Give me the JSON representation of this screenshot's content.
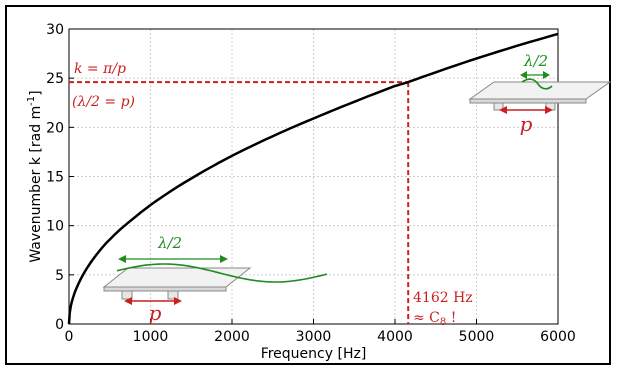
{
  "chart_data": {
    "type": "line",
    "xlabel": "Frequency [Hz]",
    "ylabel": "Wavenumber k [rad m",
    "ylabel_sup": "-1",
    "ylabel_close": "]",
    "xlim": [
      0,
      6000
    ],
    "ylim": [
      0,
      30
    ],
    "xticks": [
      "0",
      "1000",
      "2000",
      "3000",
      "4000",
      "5000",
      "6000"
    ],
    "yticks": [
      "0",
      "5",
      "10",
      "15",
      "20",
      "25",
      "30"
    ],
    "grid": true,
    "series": [
      {
        "x": [
          0,
          50,
          100,
          200,
          400,
          600,
          800,
          1000,
          1500,
          2000,
          2500,
          3000,
          3500,
          4000,
          4162,
          4500,
          5000,
          5500,
          6000
        ],
        "y": [
          0,
          2.7,
          3.8,
          5.4,
          7.7,
          9.4,
          10.8,
          12.1,
          14.8,
          17.1,
          19.1,
          20.9,
          22.6,
          24.2,
          24.6,
          25.6,
          27.0,
          28.3,
          29.5
        ]
      }
    ],
    "marker": {
      "x": 4162,
      "y": 24.6
    },
    "annotations": {
      "k_label": "k = π/p",
      "lambda_label": "(λ/2 = p)",
      "freq_label": "4162 Hz",
      "note_label": "≈ C",
      "note_sub": "8",
      "note_bang": " !",
      "lambda_half_left": "λ/2",
      "p_left": "p",
      "lambda_half_right": "λ/2",
      "p_right": "p"
    },
    "colors": {
      "curve": "#000000",
      "red": "#cc1f1f",
      "green": "#1e8c1e",
      "grid": "#cfcfcf"
    }
  }
}
